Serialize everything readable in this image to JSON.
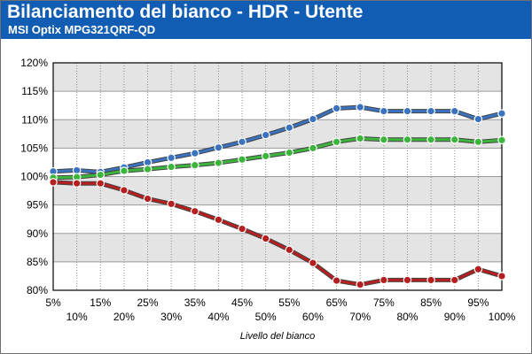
{
  "header": {
    "title": "Bilanciamento del bianco - HDR - Utente",
    "subtitle": "MSI Optix MPG321QRF-QD"
  },
  "colors": {
    "header_bg": "#125db4",
    "blue": "#3a72c0",
    "green": "#3db53d",
    "red": "#b51f1f",
    "plot_band": "#e4e4e4"
  },
  "chart_data": {
    "type": "line",
    "title": "Bilanciamento del bianco - HDR - Utente",
    "subtitle": "MSI Optix MPG321QRF-QD",
    "xlabel": "Livello del bianco",
    "ylabel": "",
    "x": [
      "5%",
      "10%",
      "15%",
      "20%",
      "25%",
      "30%",
      "35%",
      "40%",
      "45%",
      "50%",
      "55%",
      "60%",
      "65%",
      "70%",
      "75%",
      "80%",
      "85%",
      "90%",
      "95%",
      "100%"
    ],
    "ylim": [
      80,
      120
    ],
    "yticks": [
      "80%",
      "85%",
      "90%",
      "95%",
      "100%",
      "105%",
      "110%",
      "115%",
      "120%"
    ],
    "grid": true,
    "legend": "none",
    "series": [
      {
        "color": "#3a72c0",
        "values": [
          100.9,
          101.1,
          100.8,
          101.6,
          102.5,
          103.3,
          104.1,
          105.1,
          106.1,
          107.3,
          108.6,
          110.1,
          112.0,
          112.2,
          111.5,
          111.5,
          111.5,
          111.5,
          110.1,
          111.1
        ]
      },
      {
        "color": "#3db53d",
        "values": [
          99.8,
          99.9,
          100.3,
          101.0,
          101.3,
          101.7,
          102.0,
          102.4,
          103.0,
          103.6,
          104.2,
          105.0,
          106.1,
          106.7,
          106.5,
          106.5,
          106.5,
          106.5,
          106.1,
          106.4
        ]
      },
      {
        "color": "#b51f1f",
        "values": [
          99.0,
          98.8,
          98.8,
          97.6,
          96.1,
          95.2,
          93.9,
          92.4,
          90.8,
          89.1,
          87.1,
          84.8,
          81.7,
          81.0,
          81.8,
          81.8,
          81.8,
          81.8,
          83.7,
          82.5
        ]
      }
    ]
  }
}
